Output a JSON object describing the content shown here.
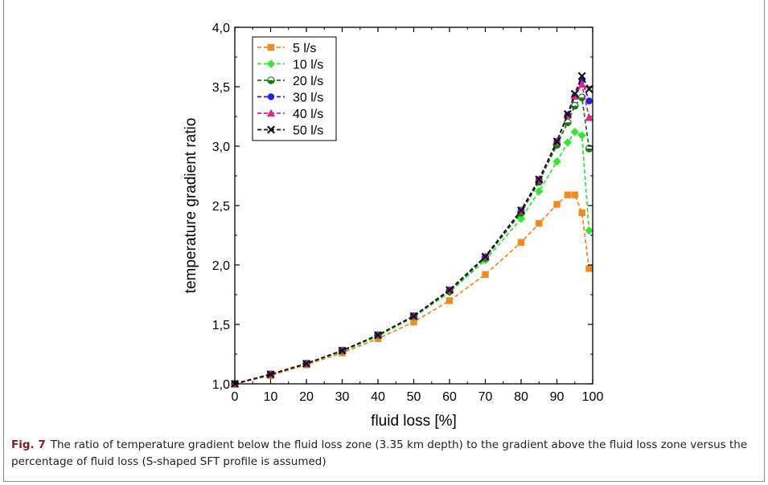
{
  "caption": {
    "label": "Fig. 7",
    "text": "The ratio of temperature gradient below the fluid loss zone (3.35 km depth) to the gradient above the fluid loss zone versus the percentage of fluid loss (S-shaped SFT profile is assumed)"
  },
  "chart_data": {
    "type": "line",
    "title": "",
    "xlabel": "fluid loss [%]",
    "ylabel": "temperature gradient ratio",
    "xlim": [
      0,
      100
    ],
    "ylim": [
      1.0,
      4.0
    ],
    "xticks": [
      "0",
      "10",
      "20",
      "30",
      "40",
      "50",
      "60",
      "70",
      "80",
      "90",
      "100"
    ],
    "yticks": [
      "1,0",
      "1,5",
      "2,0",
      "2,5",
      "3,0",
      "3,5",
      "4,0"
    ],
    "grid": false,
    "legend_position": "top-left",
    "series": [
      {
        "name": "5 l/s",
        "color": "#f28a1f",
        "marker": "square",
        "x": [
          0,
          10,
          20,
          30,
          40,
          50,
          60,
          70,
          80,
          85,
          90,
          93,
          95,
          97,
          99
        ],
        "y": [
          1.0,
          1.07,
          1.16,
          1.26,
          1.38,
          1.52,
          1.7,
          1.92,
          2.19,
          2.35,
          2.51,
          2.59,
          2.59,
          2.44,
          1.97
        ]
      },
      {
        "name": "10 l/s",
        "color": "#2fe82f",
        "marker": "diamond",
        "x": [
          0,
          10,
          20,
          30,
          40,
          50,
          60,
          70,
          80,
          85,
          90,
          93,
          95,
          97,
          99
        ],
        "y": [
          1.0,
          1.08,
          1.17,
          1.27,
          1.4,
          1.56,
          1.77,
          2.04,
          2.39,
          2.62,
          2.87,
          3.03,
          3.12,
          3.09,
          2.29
        ]
      },
      {
        "name": "20 l/s",
        "color": "#1a7a1a",
        "marker": "half-circle",
        "x": [
          0,
          10,
          20,
          30,
          40,
          50,
          60,
          70,
          80,
          85,
          90,
          93,
          95,
          97,
          99
        ],
        "y": [
          1.0,
          1.08,
          1.17,
          1.28,
          1.41,
          1.57,
          1.78,
          2.06,
          2.44,
          2.7,
          3.01,
          3.2,
          3.34,
          3.41,
          2.98
        ]
      },
      {
        "name": "30 l/s",
        "color": "#1f1fe6",
        "marker": "circle",
        "x": [
          0,
          10,
          20,
          30,
          40,
          50,
          60,
          70,
          80,
          85,
          90,
          93,
          95,
          97,
          99
        ],
        "y": [
          1.0,
          1.08,
          1.17,
          1.28,
          1.41,
          1.57,
          1.79,
          2.07,
          2.46,
          2.72,
          3.04,
          3.26,
          3.42,
          3.56,
          3.38
        ]
      },
      {
        "name": "40 l/s",
        "color": "#e8208a",
        "marker": "triangle",
        "x": [
          0,
          10,
          20,
          30,
          40,
          50,
          60,
          70,
          80,
          85,
          90,
          93,
          95,
          97,
          99
        ],
        "y": [
          1.0,
          1.08,
          1.17,
          1.28,
          1.41,
          1.57,
          1.79,
          2.07,
          2.46,
          2.72,
          3.04,
          3.26,
          3.42,
          3.52,
          3.24
        ]
      },
      {
        "name": "50 l/s",
        "color": "#111111",
        "marker": "x",
        "x": [
          0,
          10,
          20,
          30,
          40,
          50,
          60,
          70,
          80,
          85,
          90,
          93,
          95,
          97,
          99
        ],
        "y": [
          1.0,
          1.08,
          1.17,
          1.28,
          1.41,
          1.57,
          1.79,
          2.07,
          2.46,
          2.72,
          3.04,
          3.27,
          3.44,
          3.59,
          3.48
        ]
      }
    ]
  }
}
